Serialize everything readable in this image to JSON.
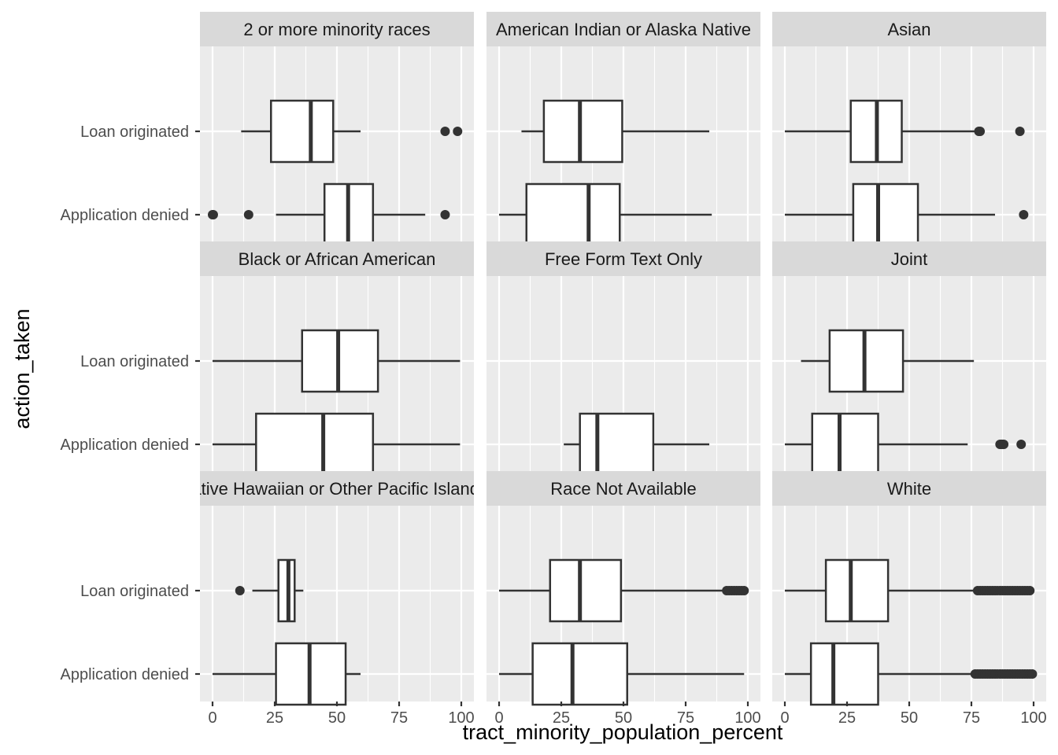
{
  "chart_data": {
    "type": "boxplot",
    "xlabel": "tract_minority_population_percent",
    "ylabel": "action_taken",
    "xlim": [
      0,
      100
    ],
    "x_ticks": [
      0,
      25,
      50,
      75,
      100
    ],
    "categories": [
      "Loan originated",
      "Application denied"
    ],
    "facets": [
      {
        "title": "2 or more minority races",
        "boxes": [
          {
            "category": "Loan originated",
            "whisker_low": 11.5,
            "q1": 23.5,
            "median": 39.5,
            "q3": 48.5,
            "whisker_high": 59.5,
            "outliers": [
              93.5,
              98.5
            ]
          },
          {
            "category": "Application denied",
            "whisker_low": 25.5,
            "q1": 45,
            "median": 54.5,
            "q3": 64.5,
            "whisker_high": 85.5,
            "outliers": [
              0,
              0.3,
              14.5,
              93.5
            ]
          }
        ]
      },
      {
        "title": "American Indian or Alaska Native",
        "boxes": [
          {
            "category": "Loan originated",
            "whisker_low": 9,
            "q1": 18,
            "median": 32.5,
            "q3": 49.5,
            "whisker_high": 84.5,
            "outliers": []
          },
          {
            "category": "Application denied",
            "whisker_low": 0,
            "q1": 11,
            "median": 36,
            "q3": 48.5,
            "whisker_high": 85.5,
            "outliers": []
          }
        ]
      },
      {
        "title": "Asian",
        "boxes": [
          {
            "category": "Loan originated",
            "whisker_low": 0,
            "q1": 26.5,
            "median": 37,
            "q3": 47,
            "whisker_high": 77.5,
            "outliers": [
              78,
              78.5,
              94.5
            ]
          },
          {
            "category": "Application denied",
            "whisker_low": 0,
            "q1": 27.5,
            "median": 37.5,
            "q3": 53.5,
            "whisker_high": 84.5,
            "outliers": [
              96
            ]
          }
        ]
      },
      {
        "title": "Black or African American",
        "boxes": [
          {
            "category": "Loan originated",
            "whisker_low": 0,
            "q1": 36,
            "median": 50.5,
            "q3": 66.5,
            "whisker_high": 99.5,
            "outliers": []
          },
          {
            "category": "Application denied",
            "whisker_low": 0,
            "q1": 17.5,
            "median": 44.5,
            "q3": 64.5,
            "whisker_high": 99.5,
            "outliers": []
          }
        ]
      },
      {
        "title": "Free Form Text Only",
        "boxes": [
          {
            "category": "Application denied",
            "whisker_low": 26,
            "q1": 32.5,
            "median": 39.5,
            "q3": 62,
            "whisker_high": 84.5,
            "outliers": []
          }
        ]
      },
      {
        "title": "Joint",
        "boxes": [
          {
            "category": "Loan originated",
            "whisker_low": 6.5,
            "q1": 18,
            "median": 32,
            "q3": 47.5,
            "whisker_high": 76,
            "outliers": []
          },
          {
            "category": "Application denied",
            "whisker_low": 0,
            "q1": 11,
            "median": 22,
            "q3": 37.5,
            "whisker_high": 73.5,
            "outliers": [
              86.5,
              87,
              87.5,
              88,
              95
            ]
          }
        ]
      },
      {
        "title": "Native Hawaiian or Other Pacific Islander",
        "boxes": [
          {
            "category": "Loan originated",
            "whisker_low": 16,
            "q1": 26.5,
            "median": 30.5,
            "q3": 33,
            "whisker_high": 36.5,
            "outliers": [
              11
            ]
          },
          {
            "category": "Application denied",
            "whisker_low": 0,
            "q1": 25.5,
            "median": 39,
            "q3": 53.5,
            "whisker_high": 59.5,
            "outliers": []
          }
        ]
      },
      {
        "title": "Race Not Available",
        "boxes": [
          {
            "category": "Loan originated",
            "whisker_low": 0,
            "q1": 20.5,
            "median": 32.5,
            "q3": 49,
            "whisker_high": 91.5,
            "outliers": [
              91.5,
              92.5,
              93.5,
              94.5,
              95.5,
              96.5,
              97.5,
              98.5
            ]
          },
          {
            "category": "Application denied",
            "whisker_low": 0,
            "q1": 13.5,
            "median": 29.5,
            "q3": 51.5,
            "whisker_high": 98.5,
            "outliers": []
          }
        ]
      },
      {
        "title": "White",
        "boxes": [
          {
            "category": "Loan originated",
            "whisker_low": 0,
            "q1": 16.5,
            "median": 26.5,
            "q3": 41.5,
            "whisker_high": 77.5,
            "outliers": [
              77.5,
              78.5,
              79.5,
              80.5,
              81.5,
              82.5,
              83.5,
              84.5,
              85.5,
              86.5,
              87.5,
              88.5,
              89.5,
              90.5,
              91.5,
              92.5,
              93.5,
              94.5,
              95.5,
              96.5,
              97.5,
              98.5
            ]
          },
          {
            "category": "Application denied",
            "whisker_low": 0,
            "q1": 10.5,
            "median": 19.5,
            "q3": 37.5,
            "whisker_high": 76.5,
            "outliers": [
              76.5,
              77.5,
              78.5,
              79.5,
              80.5,
              81.5,
              82.5,
              83.5,
              84.5,
              85.5,
              86.5,
              87.5,
              88.5,
              89.5,
              90.5,
              91.5,
              92.5,
              93.5,
              94.5,
              95.5,
              96.5,
              97.5,
              98.5,
              99.5
            ]
          }
        ]
      }
    ]
  }
}
